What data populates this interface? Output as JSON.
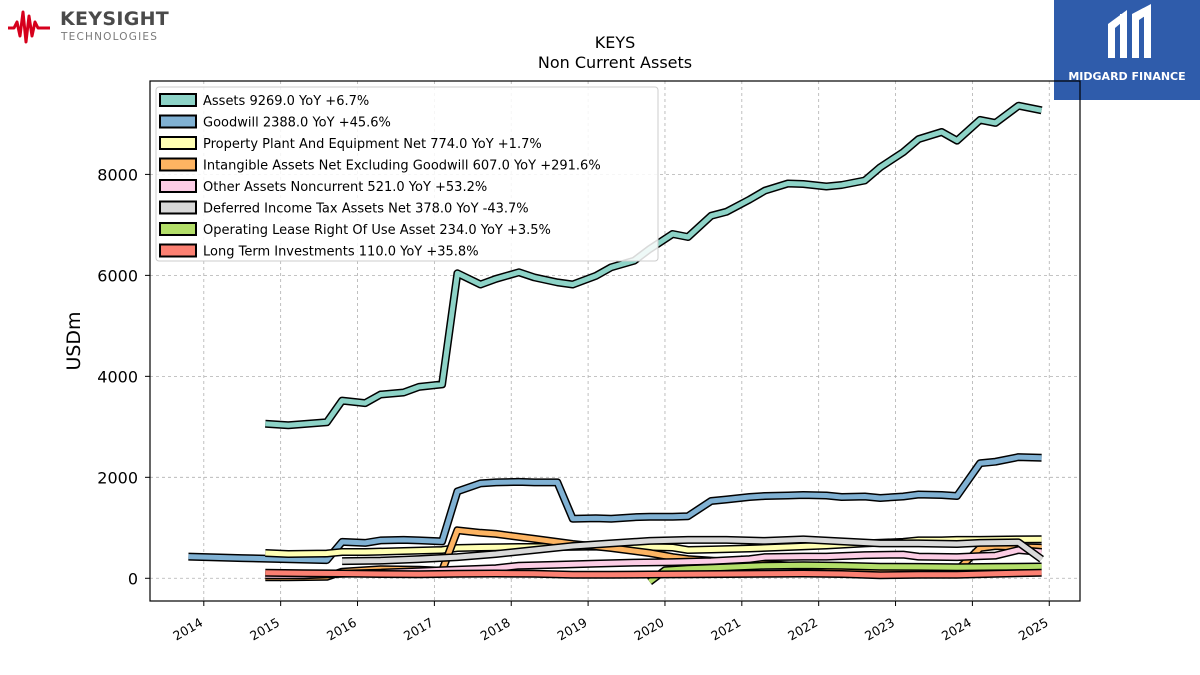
{
  "branding": {
    "left_name": "KEYSIGHT",
    "left_sub": "TECHNOLOGIES",
    "left_accent": "#d6001c",
    "right_name": "MIDGARD FINANCE",
    "right_bg": "#2f5cab"
  },
  "chart_data": {
    "type": "line",
    "title": "KEYS",
    "subtitle": "Non Current  Assets",
    "ylabel": "USDm",
    "xlabel": "",
    "xlim": [
      2013.3,
      2025.4
    ],
    "ylim": [
      -450,
      9850
    ],
    "yticks": [
      0,
      2000,
      4000,
      6000,
      8000
    ],
    "ytick_labels": [
      "0",
      "2000",
      "4000",
      "6000",
      "8000"
    ],
    "xticks": [
      2014,
      2015,
      2016,
      2017,
      2018,
      2019,
      2020,
      2021,
      2022,
      2023,
      2024,
      2025
    ],
    "xtick_labels": [
      "2014",
      "2015",
      "2016",
      "2017",
      "2018",
      "2019",
      "2020",
      "2021",
      "2022",
      "2023",
      "2024",
      "2025"
    ],
    "grid": true,
    "legend_position": "top-left",
    "series": [
      {
        "name": "Assets",
        "label": "Assets  9269.0 YoY +6.7%",
        "color": "#8dd3c7",
        "points": [
          [
            2014.8,
            3060
          ],
          [
            2015.1,
            3030
          ],
          [
            2015.6,
            3090
          ],
          [
            2015.8,
            3520
          ],
          [
            2016.1,
            3470
          ],
          [
            2016.3,
            3640
          ],
          [
            2016.6,
            3680
          ],
          [
            2016.8,
            3790
          ],
          [
            2017.1,
            3840
          ],
          [
            2017.3,
            6040
          ],
          [
            2017.6,
            5820
          ],
          [
            2017.8,
            5930
          ],
          [
            2018.1,
            6060
          ],
          [
            2018.3,
            5960
          ],
          [
            2018.6,
            5860
          ],
          [
            2018.8,
            5820
          ],
          [
            2019.1,
            5990
          ],
          [
            2019.3,
            6160
          ],
          [
            2019.6,
            6290
          ],
          [
            2019.8,
            6520
          ],
          [
            2020.1,
            6820
          ],
          [
            2020.3,
            6760
          ],
          [
            2020.6,
            7180
          ],
          [
            2020.8,
            7260
          ],
          [
            2021.1,
            7500
          ],
          [
            2021.3,
            7680
          ],
          [
            2021.6,
            7820
          ],
          [
            2021.8,
            7810
          ],
          [
            2022.1,
            7760
          ],
          [
            2022.3,
            7790
          ],
          [
            2022.6,
            7880
          ],
          [
            2022.8,
            8140
          ],
          [
            2023.1,
            8440
          ],
          [
            2023.3,
            8700
          ],
          [
            2023.6,
            8840
          ],
          [
            2023.8,
            8670
          ],
          [
            2024.1,
            9080
          ],
          [
            2024.3,
            9020
          ],
          [
            2024.6,
            9360
          ],
          [
            2024.9,
            9269
          ]
        ]
      },
      {
        "name": "Goodwill",
        "label": "Goodwill  2388.0 YoY +45.6%",
        "color": "#80b1d3",
        "points": [
          [
            2013.8,
            430
          ],
          [
            2014.5,
            400
          ],
          [
            2015.6,
            360
          ],
          [
            2015.8,
            720
          ],
          [
            2016.1,
            700
          ],
          [
            2016.3,
            750
          ],
          [
            2016.6,
            760
          ],
          [
            2016.8,
            750
          ],
          [
            2017.1,
            730
          ],
          [
            2017.3,
            1720
          ],
          [
            2017.6,
            1880
          ],
          [
            2017.8,
            1900
          ],
          [
            2018.1,
            1910
          ],
          [
            2018.3,
            1900
          ],
          [
            2018.6,
            1900
          ],
          [
            2018.8,
            1180
          ],
          [
            2019.1,
            1190
          ],
          [
            2019.3,
            1180
          ],
          [
            2019.6,
            1210
          ],
          [
            2019.8,
            1220
          ],
          [
            2020.1,
            1220
          ],
          [
            2020.3,
            1230
          ],
          [
            2020.6,
            1530
          ],
          [
            2020.8,
            1560
          ],
          [
            2021.1,
            1610
          ],
          [
            2021.3,
            1630
          ],
          [
            2021.6,
            1640
          ],
          [
            2021.8,
            1650
          ],
          [
            2022.1,
            1640
          ],
          [
            2022.3,
            1610
          ],
          [
            2022.6,
            1620
          ],
          [
            2022.8,
            1590
          ],
          [
            2023.1,
            1620
          ],
          [
            2023.3,
            1660
          ],
          [
            2023.6,
            1650
          ],
          [
            2023.8,
            1630
          ],
          [
            2024.1,
            2280
          ],
          [
            2024.3,
            2310
          ],
          [
            2024.6,
            2400
          ],
          [
            2024.9,
            2388
          ]
        ]
      },
      {
        "name": "Property Plant And Equipment Net",
        "label": "Property Plant And Equipment Net  774.0 YoY +1.7%",
        "color": "#ffffb3",
        "points": [
          [
            2014.8,
            500
          ],
          [
            2015.1,
            480
          ],
          [
            2015.6,
            490
          ],
          [
            2015.8,
            520
          ],
          [
            2016.1,
            520
          ],
          [
            2016.6,
            540
          ],
          [
            2017.1,
            560
          ],
          [
            2017.3,
            600
          ],
          [
            2017.6,
            610
          ],
          [
            2018.1,
            620
          ],
          [
            2018.6,
            620
          ],
          [
            2019.1,
            630
          ],
          [
            2019.6,
            620
          ],
          [
            2019.8,
            620
          ],
          [
            2020.1,
            610
          ],
          [
            2020.3,
            560
          ],
          [
            2020.6,
            570
          ],
          [
            2021.1,
            590
          ],
          [
            2021.6,
            620
          ],
          [
            2022.1,
            650
          ],
          [
            2022.6,
            690
          ],
          [
            2023.1,
            720
          ],
          [
            2023.3,
            750
          ],
          [
            2023.6,
            750
          ],
          [
            2023.8,
            760
          ],
          [
            2024.1,
            760
          ],
          [
            2024.6,
            770
          ],
          [
            2024.9,
            774
          ]
        ]
      },
      {
        "name": "Intangible Assets Net Excluding Goodwill",
        "label": "Intangible Assets Net Excluding Goodwill  607.0 YoY +291.6%",
        "color": "#fdb462",
        "points": [
          [
            2014.8,
            20
          ],
          [
            2015.1,
            20
          ],
          [
            2015.6,
            30
          ],
          [
            2015.8,
            130
          ],
          [
            2016.3,
            180
          ],
          [
            2016.8,
            170
          ],
          [
            2017.1,
            150
          ],
          [
            2017.3,
            950
          ],
          [
            2017.6,
            900
          ],
          [
            2017.8,
            880
          ],
          [
            2018.3,
            780
          ],
          [
            2018.8,
            680
          ],
          [
            2019.3,
            600
          ],
          [
            2019.8,
            500
          ],
          [
            2020.1,
            420
          ],
          [
            2020.3,
            380
          ],
          [
            2020.8,
            330
          ],
          [
            2021.3,
            280
          ],
          [
            2021.8,
            240
          ],
          [
            2022.3,
            200
          ],
          [
            2022.8,
            170
          ],
          [
            2023.3,
            160
          ],
          [
            2023.8,
            155
          ],
          [
            2024.1,
            600
          ],
          [
            2024.3,
            640
          ],
          [
            2024.6,
            620
          ],
          [
            2024.9,
            607
          ]
        ]
      },
      {
        "name": "Other Assets Noncurrent",
        "label": "Other Assets Noncurrent  521.0 YoY +53.2%",
        "color": "#fccde5",
        "points": [
          [
            2014.8,
            60
          ],
          [
            2015.3,
            60
          ],
          [
            2015.8,
            90
          ],
          [
            2016.3,
            110
          ],
          [
            2016.8,
            140
          ],
          [
            2017.1,
            160
          ],
          [
            2017.8,
            200
          ],
          [
            2018.1,
            250
          ],
          [
            2018.6,
            270
          ],
          [
            2019.1,
            290
          ],
          [
            2019.6,
            310
          ],
          [
            2020.1,
            320
          ],
          [
            2020.6,
            340
          ],
          [
            2021.1,
            380
          ],
          [
            2021.3,
            420
          ],
          [
            2021.8,
            430
          ],
          [
            2022.1,
            430
          ],
          [
            2022.6,
            460
          ],
          [
            2023.1,
            470
          ],
          [
            2023.3,
            430
          ],
          [
            2023.8,
            420
          ],
          [
            2024.1,
            440
          ],
          [
            2024.3,
            450
          ],
          [
            2024.6,
            560
          ],
          [
            2024.9,
            521
          ]
        ]
      },
      {
        "name": "Deferred Income Tax Assets Net",
        "label": "Deferred Income Tax Assets Net  378.0 YoY -43.7%",
        "color": "#d9d9d9",
        "points": [
          [
            2015.8,
            340
          ],
          [
            2016.3,
            350
          ],
          [
            2016.8,
            380
          ],
          [
            2017.3,
            420
          ],
          [
            2017.8,
            480
          ],
          [
            2018.3,
            560
          ],
          [
            2018.8,
            640
          ],
          [
            2019.3,
            690
          ],
          [
            2019.8,
            740
          ],
          [
            2020.3,
            760
          ],
          [
            2020.8,
            760
          ],
          [
            2021.3,
            740
          ],
          [
            2021.8,
            770
          ],
          [
            2022.3,
            730
          ],
          [
            2022.8,
            690
          ],
          [
            2023.3,
            690
          ],
          [
            2023.8,
            680
          ],
          [
            2024.1,
            700
          ],
          [
            2024.6,
            710
          ],
          [
            2024.9,
            378
          ]
        ]
      },
      {
        "name": "Operating Lease Right Of Use Asset",
        "label": "Operating Lease Right Of Use Asset  234.0 YoY +3.5%",
        "color": "#b3de69",
        "points": [
          [
            2019.8,
            -70
          ],
          [
            2020.0,
            160
          ],
          [
            2020.3,
            190
          ],
          [
            2020.8,
            220
          ],
          [
            2021.3,
            250
          ],
          [
            2021.8,
            260
          ],
          [
            2022.3,
            250
          ],
          [
            2022.8,
            230
          ],
          [
            2023.3,
            225
          ],
          [
            2023.8,
            220
          ],
          [
            2024.3,
            226
          ],
          [
            2024.9,
            234
          ]
        ]
      },
      {
        "name": "Long Term Investments",
        "label": "Long Term Investments  110.0 YoY +35.8%",
        "color": "#fb8072",
        "points": [
          [
            2014.8,
            110
          ],
          [
            2015.3,
            100
          ],
          [
            2015.8,
            95
          ],
          [
            2016.3,
            85
          ],
          [
            2016.8,
            80
          ],
          [
            2017.3,
            90
          ],
          [
            2017.8,
            95
          ],
          [
            2018.3,
            90
          ],
          [
            2018.8,
            70
          ],
          [
            2019.3,
            70
          ],
          [
            2019.8,
            75
          ],
          [
            2020.3,
            80
          ],
          [
            2020.8,
            85
          ],
          [
            2021.3,
            90
          ],
          [
            2021.8,
            95
          ],
          [
            2022.3,
            85
          ],
          [
            2022.8,
            60
          ],
          [
            2023.3,
            70
          ],
          [
            2023.8,
            70
          ],
          [
            2024.3,
            90
          ],
          [
            2024.9,
            110
          ]
        ]
      }
    ]
  }
}
